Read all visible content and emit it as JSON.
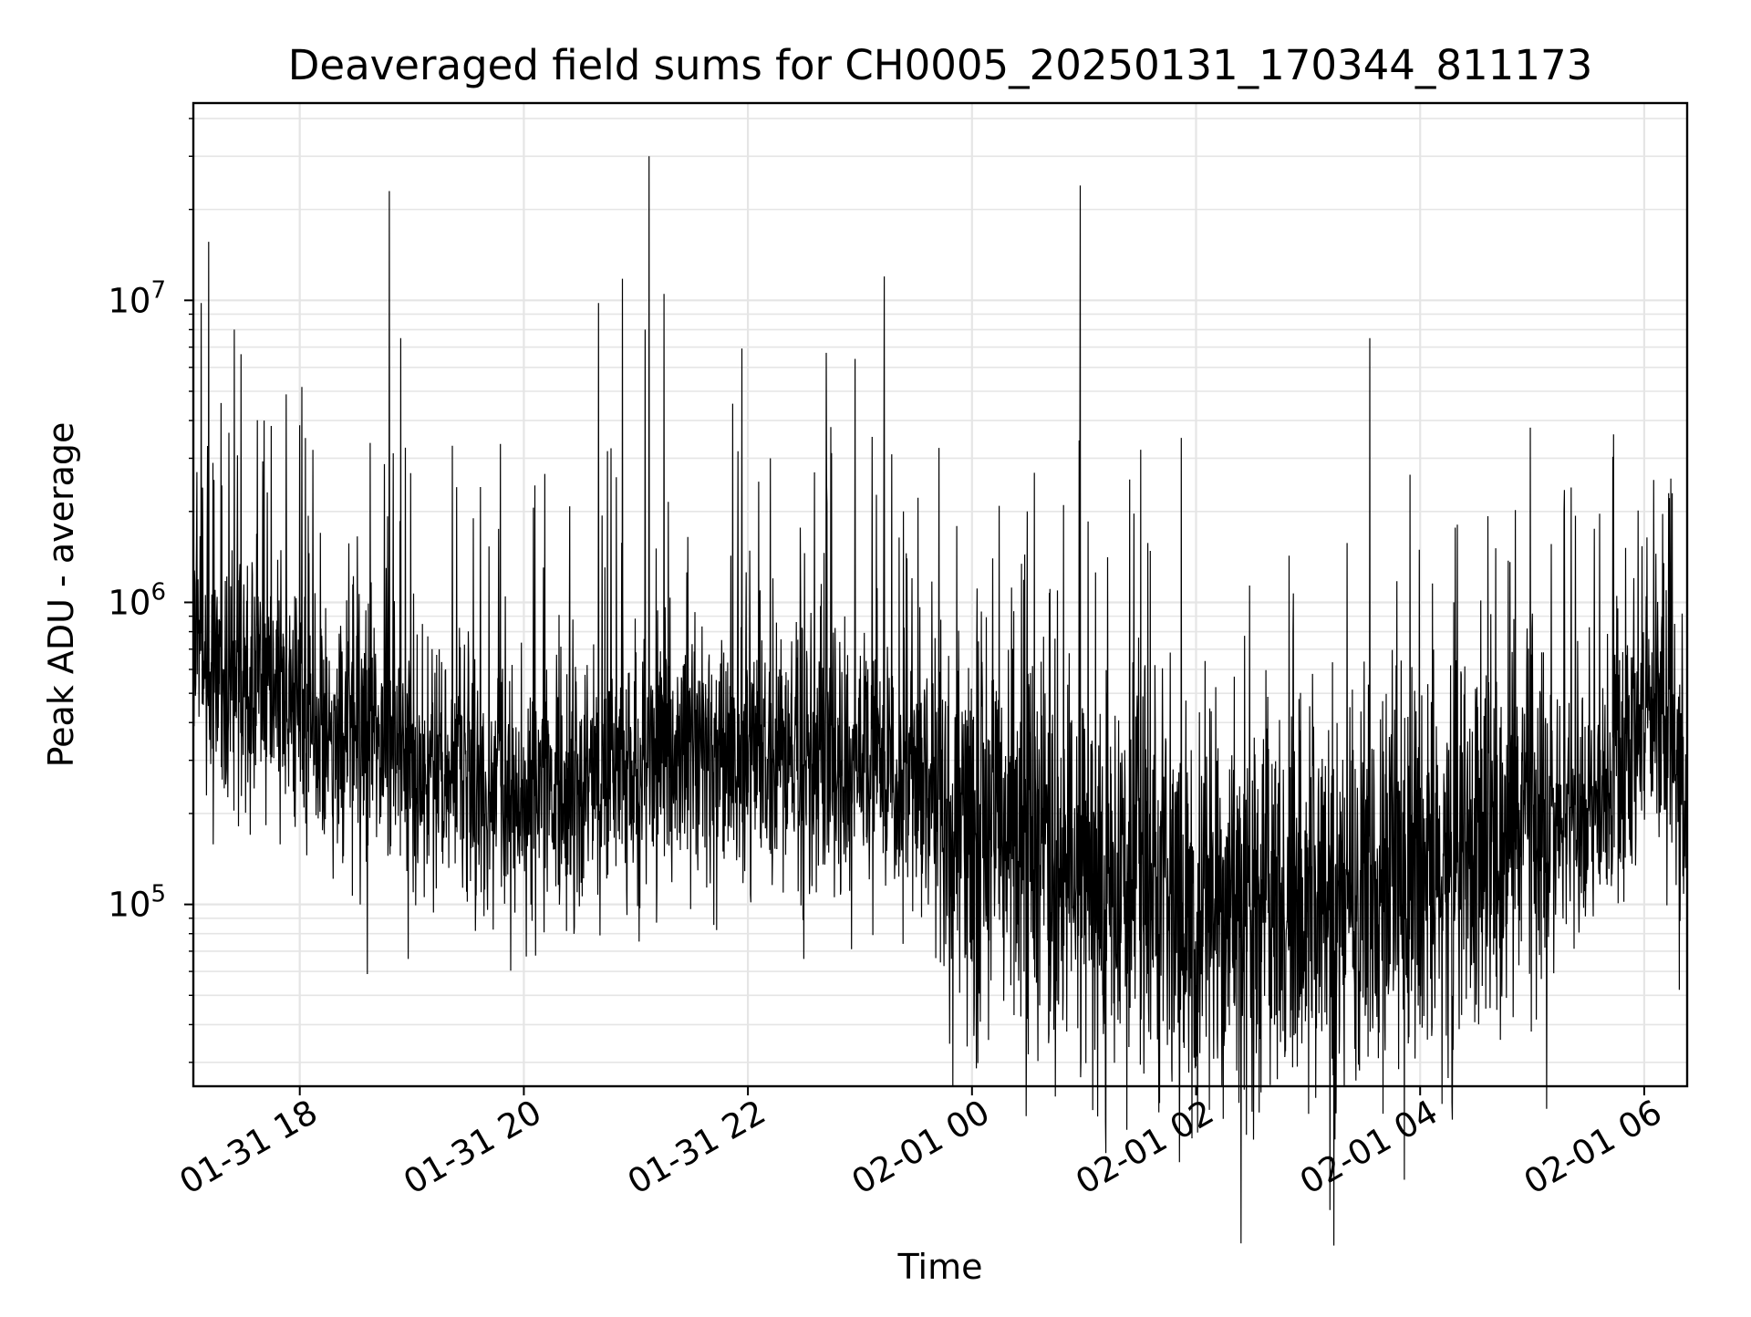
{
  "chart_data": {
    "type": "line",
    "title": "Deaveraged field sums for CH0005_20250131_170344_811173",
    "xlabel": "Time",
    "ylabel": "Peak ADU - average",
    "y_scale": "log",
    "x_range": [
      "2025-01-31 17:03",
      "2025-02-01 06:23"
    ],
    "ylim": [
      25000,
      45000000
    ],
    "grid": true,
    "legend": "none",
    "line_color": "#000000",
    "grid_color": "#e5e5e5",
    "x_ticks": [
      {
        "time": "2025-01-31 18:00",
        "label": "01-31 18"
      },
      {
        "time": "2025-01-31 20:00",
        "label": "01-31 20"
      },
      {
        "time": "2025-01-31 22:00",
        "label": "01-31 22"
      },
      {
        "time": "2025-02-01 00:00",
        "label": "02-01 00"
      },
      {
        "time": "2025-02-01 02:00",
        "label": "02-01 02"
      },
      {
        "time": "2025-02-01 04:00",
        "label": "02-01 04"
      },
      {
        "time": "2025-02-01 06:00",
        "label": "02-01 06"
      }
    ],
    "y_ticks": [
      {
        "value": 100000,
        "base": "10",
        "exp": "5"
      },
      {
        "value": 1000000,
        "base": "10",
        "exp": "6"
      },
      {
        "value": 10000000,
        "base": "10",
        "exp": "7"
      }
    ],
    "series": [
      {
        "baseline": [
          [
            "2025-01-31 17:03",
            900000
          ],
          [
            "2025-01-31 17:15",
            500000
          ],
          [
            "2025-01-31 17:30",
            550000
          ],
          [
            "2025-01-31 18:00",
            420000
          ],
          [
            "2025-01-31 18:30",
            350000
          ],
          [
            "2025-01-31 19:00",
            300000
          ],
          [
            "2025-01-31 19:30",
            260000
          ],
          [
            "2025-01-31 20:00",
            220000
          ],
          [
            "2025-01-31 20:30",
            230000
          ],
          [
            "2025-01-31 21:00",
            280000
          ],
          [
            "2025-01-31 21:30",
            320000
          ],
          [
            "2025-01-31 22:00",
            320000
          ],
          [
            "2025-01-31 22:30",
            290000
          ],
          [
            "2025-01-31 23:00",
            280000
          ],
          [
            "2025-01-31 23:30",
            250000
          ],
          [
            "2025-02-01 00:00",
            180000
          ],
          [
            "2025-02-01 00:30",
            140000
          ],
          [
            "2025-02-01 01:00",
            130000
          ],
          [
            "2025-02-01 01:30",
            110000
          ],
          [
            "2025-02-01 02:00",
            100000
          ],
          [
            "2025-02-01 02:30",
            95000
          ],
          [
            "2025-02-01 03:00",
            100000
          ],
          [
            "2025-02-01 03:30",
            110000
          ],
          [
            "2025-02-01 04:00",
            120000
          ],
          [
            "2025-02-01 04:30",
            160000
          ],
          [
            "2025-02-01 05:00",
            180000
          ],
          [
            "2025-02-01 05:30",
            190000
          ],
          [
            "2025-02-01 06:00",
            400000
          ],
          [
            "2025-02-01 06:10",
            550000
          ],
          [
            "2025-02-01 06:23",
            180000
          ]
        ],
        "spikes": [
          [
            "2025-01-31 17:05",
            2700000
          ],
          [
            "2025-01-31 17:08",
            2400000
          ],
          [
            "2025-01-31 17:25",
            8000000
          ],
          [
            "2025-01-31 17:41",
            4000000
          ],
          [
            "2025-01-31 18:03",
            3500000
          ],
          [
            "2025-01-31 18:07",
            3200000
          ],
          [
            "2025-01-31 18:48",
            23000000
          ],
          [
            "2025-01-31 18:54",
            7500000
          ],
          [
            "2025-01-31 19:33",
            1900000
          ],
          [
            "2025-01-31 20:40",
            9800000
          ],
          [
            "2025-01-31 21:05",
            8000000
          ],
          [
            "2025-01-31 21:07",
            30000000
          ],
          [
            "2025-01-31 21:15",
            10500000
          ],
          [
            "2025-01-31 22:12",
            3000000
          ],
          [
            "2025-01-31 22:42",
            6700000
          ],
          [
            "2025-01-31 23:13",
            12000000
          ],
          [
            "2025-02-01 00:49",
            2100000
          ],
          [
            "2025-02-01 00:58",
            24000000
          ],
          [
            "2025-02-01 03:33",
            7500000
          ],
          [
            "2025-02-01 05:17",
            2000000
          ],
          [
            "2025-02-01 06:13",
            2300000
          ],
          [
            "2025-02-01 06:15",
            2300000
          ]
        ],
        "dips": [
          [
            "2025-01-31 18:58",
            66000
          ],
          [
            "2025-01-31 22:30",
            66000
          ],
          [
            "2025-02-01 00:03",
            55000
          ],
          [
            "2025-02-01 01:10",
            50000
          ],
          [
            "2025-02-01 02:15",
            34000
          ],
          [
            "2025-02-01 02:40",
            42000
          ],
          [
            "2025-02-01 03:10",
            40000
          ],
          [
            "2025-02-01 04:00",
            40000
          ]
        ]
      }
    ]
  }
}
